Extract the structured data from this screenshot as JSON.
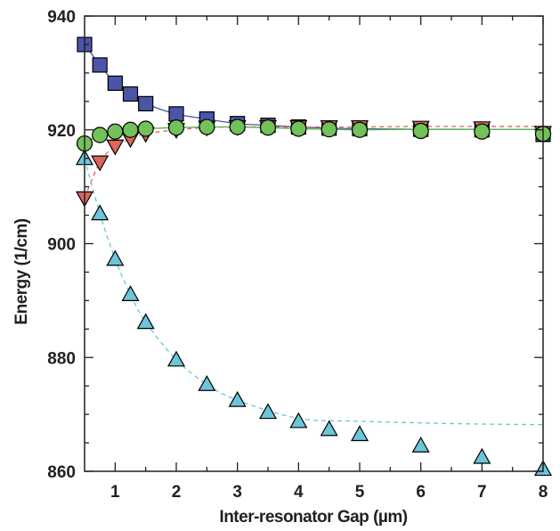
{
  "chart_data": {
    "type": "scatter",
    "title": "",
    "xlabel": "Inter-resonator Gap (µm)",
    "ylabel": "Energy (1/cm)",
    "xlim": [
      0.5,
      8
    ],
    "ylim": [
      860,
      940
    ],
    "x_ticks": [
      1,
      2,
      3,
      4,
      5,
      6,
      7,
      8
    ],
    "y_ticks": [
      860,
      880,
      900,
      920,
      940
    ],
    "grid": false,
    "legend": "none",
    "series": [
      {
        "marker": "square",
        "color": "#4a55a8",
        "line": "solid",
        "line_color": "#4a55a8",
        "x": [
          0.5,
          0.75,
          1.0,
          1.25,
          1.5,
          2.0,
          2.5,
          3.0,
          3.5,
          4.0,
          4.5,
          5.0,
          6.0,
          7.0,
          8.0
        ],
        "y": [
          935,
          931.4,
          928.2,
          926.3,
          924.6,
          922.8,
          921.9,
          921.1,
          920.8,
          920.5,
          920.3,
          920.2,
          920.1,
          920.0,
          919.2
        ]
      },
      {
        "marker": "triangle-down",
        "color": "#d9675a",
        "line": "dashed",
        "line_color": "#d9675a",
        "x": [
          0.5,
          0.75,
          1.0,
          1.25,
          1.5,
          2.0,
          2.5,
          3.0,
          3.5,
          4.0,
          4.5,
          5.0,
          6.0,
          7.0,
          8.0
        ],
        "y": [
          908,
          914.3,
          917.1,
          918.4,
          919.3,
          920.0,
          920.4,
          920.5,
          920.5,
          920.5,
          920.5,
          920.5,
          920.4,
          920.3,
          919.5
        ]
      },
      {
        "marker": "circle",
        "color": "#72c159",
        "line": "solid",
        "line_color": "#5ab04c",
        "x": [
          0.5,
          0.75,
          1.0,
          1.25,
          1.5,
          2.0,
          2.5,
          3.0,
          3.5,
          4.0,
          4.5,
          5.0,
          6.0,
          7.0,
          8.0
        ],
        "y": [
          917.6,
          919.1,
          919.7,
          920.0,
          920.2,
          920.4,
          920.5,
          920.5,
          920.4,
          920.2,
          920.1,
          920.0,
          919.8,
          919.7,
          919.3
        ]
      },
      {
        "marker": "triangle-up",
        "color": "#6cc5d8",
        "line": "dashed",
        "line_color": "#6cc5d8",
        "x": [
          0.5,
          0.75,
          1.0,
          1.25,
          1.5,
          2.0,
          2.5,
          3.0,
          3.5,
          4.0,
          4.5,
          5.0,
          6.0,
          7.0,
          8.0
        ],
        "y": [
          915,
          905.3,
          897.3,
          891.1,
          886.2,
          879.6,
          875.3,
          872.5,
          870.4,
          868.8,
          867.4,
          866.5,
          864.5,
          862.5,
          860.4
        ]
      }
    ]
  }
}
